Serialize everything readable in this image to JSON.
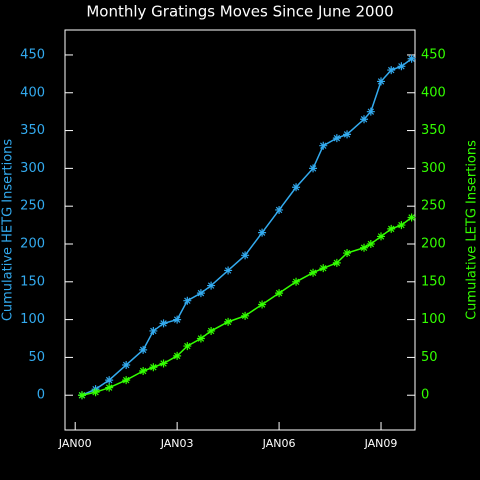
{
  "chart_data": {
    "type": "line",
    "title": "Monthly Gratings Moves Since June 2000",
    "ylabel": "Cumulative HETG Insertions",
    "y2label": "Cumulative LETG Insertions",
    "xlim": [
      1999.7,
      2010.0
    ],
    "xticks": [
      {
        "value": 2000,
        "label": "JAN00"
      },
      {
        "value": 2003,
        "label": "JAN03"
      },
      {
        "value": 2006,
        "label": "JAN06"
      },
      {
        "value": 2009,
        "label": "JAN09"
      }
    ],
    "ylim": [
      -46,
      483
    ],
    "yticks": [
      0,
      50,
      100,
      150,
      200,
      250,
      300,
      350,
      400,
      450
    ],
    "y2lim": [
      -46,
      483
    ],
    "y2ticks": [
      0,
      50,
      100,
      150,
      200,
      250,
      300,
      350,
      400,
      450
    ],
    "x": [
      2000.2,
      2000.6,
      2001.0,
      2001.5,
      2002.0,
      2002.3,
      2002.6,
      2003.0,
      2003.3,
      2003.7,
      2004.0,
      2004.5,
      2005.0,
      2005.5,
      2006.0,
      2006.5,
      2007.0,
      2007.3,
      2007.7,
      2008.0,
      2008.5,
      2008.7,
      2009.0,
      2009.3,
      2009.6,
      2009.9
    ],
    "series": [
      {
        "name": "HETG",
        "color": "#33aaee",
        "values": [
          0,
          8,
          20,
          40,
          60,
          85,
          95,
          100,
          125,
          135,
          145,
          165,
          185,
          215,
          245,
          275,
          300,
          330,
          340,
          345,
          365,
          375,
          415,
          430,
          435,
          445
        ]
      },
      {
        "name": "LETG",
        "color": "#33ff00",
        "axis": "y2",
        "values": [
          0,
          4,
          10,
          20,
          32,
          37,
          42,
          52,
          65,
          75,
          85,
          97,
          105,
          120,
          135,
          150,
          162,
          168,
          175,
          188,
          195,
          200,
          210,
          220,
          225,
          235
        ]
      }
    ]
  }
}
